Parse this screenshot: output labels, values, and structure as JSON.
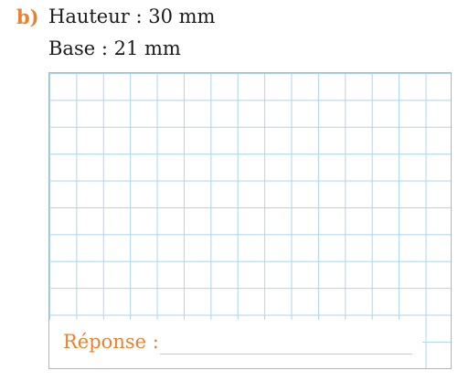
{
  "exercise": {
    "label": "b)",
    "lines": [
      "Hauteur : 30 mm",
      "Base : 21 mm"
    ]
  },
  "answer": {
    "label": "Réponse :"
  },
  "colors": {
    "accent": "#e8822f",
    "grid": "#a9d6ee",
    "frame": "#f0a474",
    "text": "#1a1a1a"
  }
}
